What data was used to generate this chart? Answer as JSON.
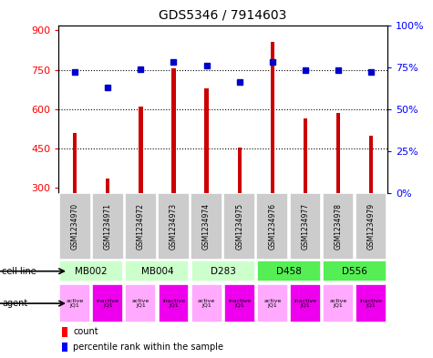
{
  "title": "GDS5346 / 7914603",
  "samples": [
    "GSM1234970",
    "GSM1234971",
    "GSM1234972",
    "GSM1234973",
    "GSM1234974",
    "GSM1234975",
    "GSM1234976",
    "GSM1234977",
    "GSM1234978",
    "GSM1234979"
  ],
  "counts": [
    510,
    335,
    610,
    755,
    680,
    455,
    855,
    565,
    585,
    500
  ],
  "percentiles": [
    72,
    63,
    74,
    78,
    76,
    66,
    78,
    73,
    73,
    72
  ],
  "cell_lines": [
    {
      "label": "MB002",
      "cols": [
        0,
        1
      ],
      "color": "#ccffcc"
    },
    {
      "label": "MB004",
      "cols": [
        2,
        3
      ],
      "color": "#ccffcc"
    },
    {
      "label": "D283",
      "cols": [
        4,
        5
      ],
      "color": "#ccffcc"
    },
    {
      "label": "D458",
      "cols": [
        6,
        7
      ],
      "color": "#55ee55"
    },
    {
      "label": "D556",
      "cols": [
        8,
        9
      ],
      "color": "#55ee55"
    }
  ],
  "agent_labels": [
    "active\nJQ1",
    "inactive\nJQ1",
    "active\nJQ1",
    "inactive\nJQ1",
    "active\nJQ1",
    "inactive\nJQ1",
    "active\nJQ1",
    "inactive\nJQ1",
    "active\nJQ1",
    "inactive\nJQ1"
  ],
  "agent_colors": [
    "#ffaaff",
    "#ee00ee",
    "#ffaaff",
    "#ee00ee",
    "#ffaaff",
    "#ee00ee",
    "#ffaaff",
    "#ee00ee",
    "#ffaaff",
    "#ee00ee"
  ],
  "bar_color": "#cc0000",
  "dot_color": "#0000cc",
  "ylim_left": [
    280,
    920
  ],
  "ylim_right": [
    0,
    100
  ],
  "yticks_left": [
    300,
    450,
    600,
    750,
    900
  ],
  "yticks_right": [
    0,
    25,
    50,
    75,
    100
  ],
  "grid_values": [
    450,
    600,
    750
  ],
  "sample_box_color": "#cccccc",
  "bar_width": 0.12
}
